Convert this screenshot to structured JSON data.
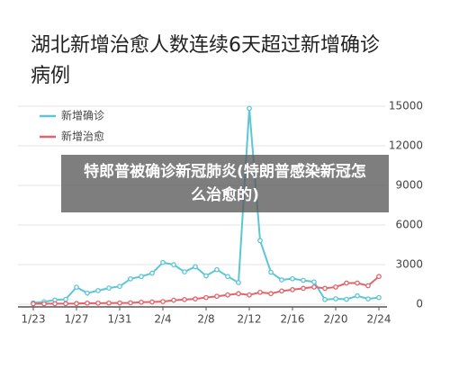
{
  "chart_data": {
    "type": "line",
    "title": "湖北新增治愈人数连续6天超过新增确诊病例",
    "annotation": "特郎普被确诊新冠肺炎(特朗普感染新冠怎么治愈的)",
    "categories": [
      "1/23",
      null,
      null,
      null,
      "1/27",
      null,
      null,
      null,
      "1/31",
      null,
      null,
      null,
      "2/4",
      null,
      null,
      null,
      "2/8",
      null,
      null,
      null,
      "2/12",
      null,
      null,
      null,
      "2/16",
      null,
      null,
      null,
      "2/20",
      null,
      null,
      null,
      "2/24"
    ],
    "series": [
      {
        "name": "新增确诊",
        "color": "#5cc6d6",
        "values": [
          100,
          180,
          320,
          370,
          1290,
          840,
          1030,
          1220,
          1350,
          1920,
          2100,
          2350,
          3160,
          2990,
          2450,
          2840,
          2150,
          2620,
          2100,
          1640,
          14840,
          4820,
          2420,
          1840,
          1930,
          1810,
          1690,
          350,
          410,
          370,
          630,
          400,
          500
        ]
      },
      {
        "name": "新增治愈",
        "color": "#e2636b",
        "values": [
          30,
          30,
          40,
          40,
          50,
          80,
          80,
          90,
          90,
          100,
          150,
          170,
          200,
          300,
          350,
          400,
          500,
          600,
          700,
          800,
          700,
          900,
          800,
          1000,
          1100,
          1200,
          1300,
          1200,
          1300,
          1600,
          1600,
          1400,
          2100
        ]
      }
    ],
    "ylim": [
      0,
      15000
    ],
    "yticks": [
      0,
      3000,
      6000,
      9000,
      12000,
      15000
    ],
    "grid": true
  }
}
